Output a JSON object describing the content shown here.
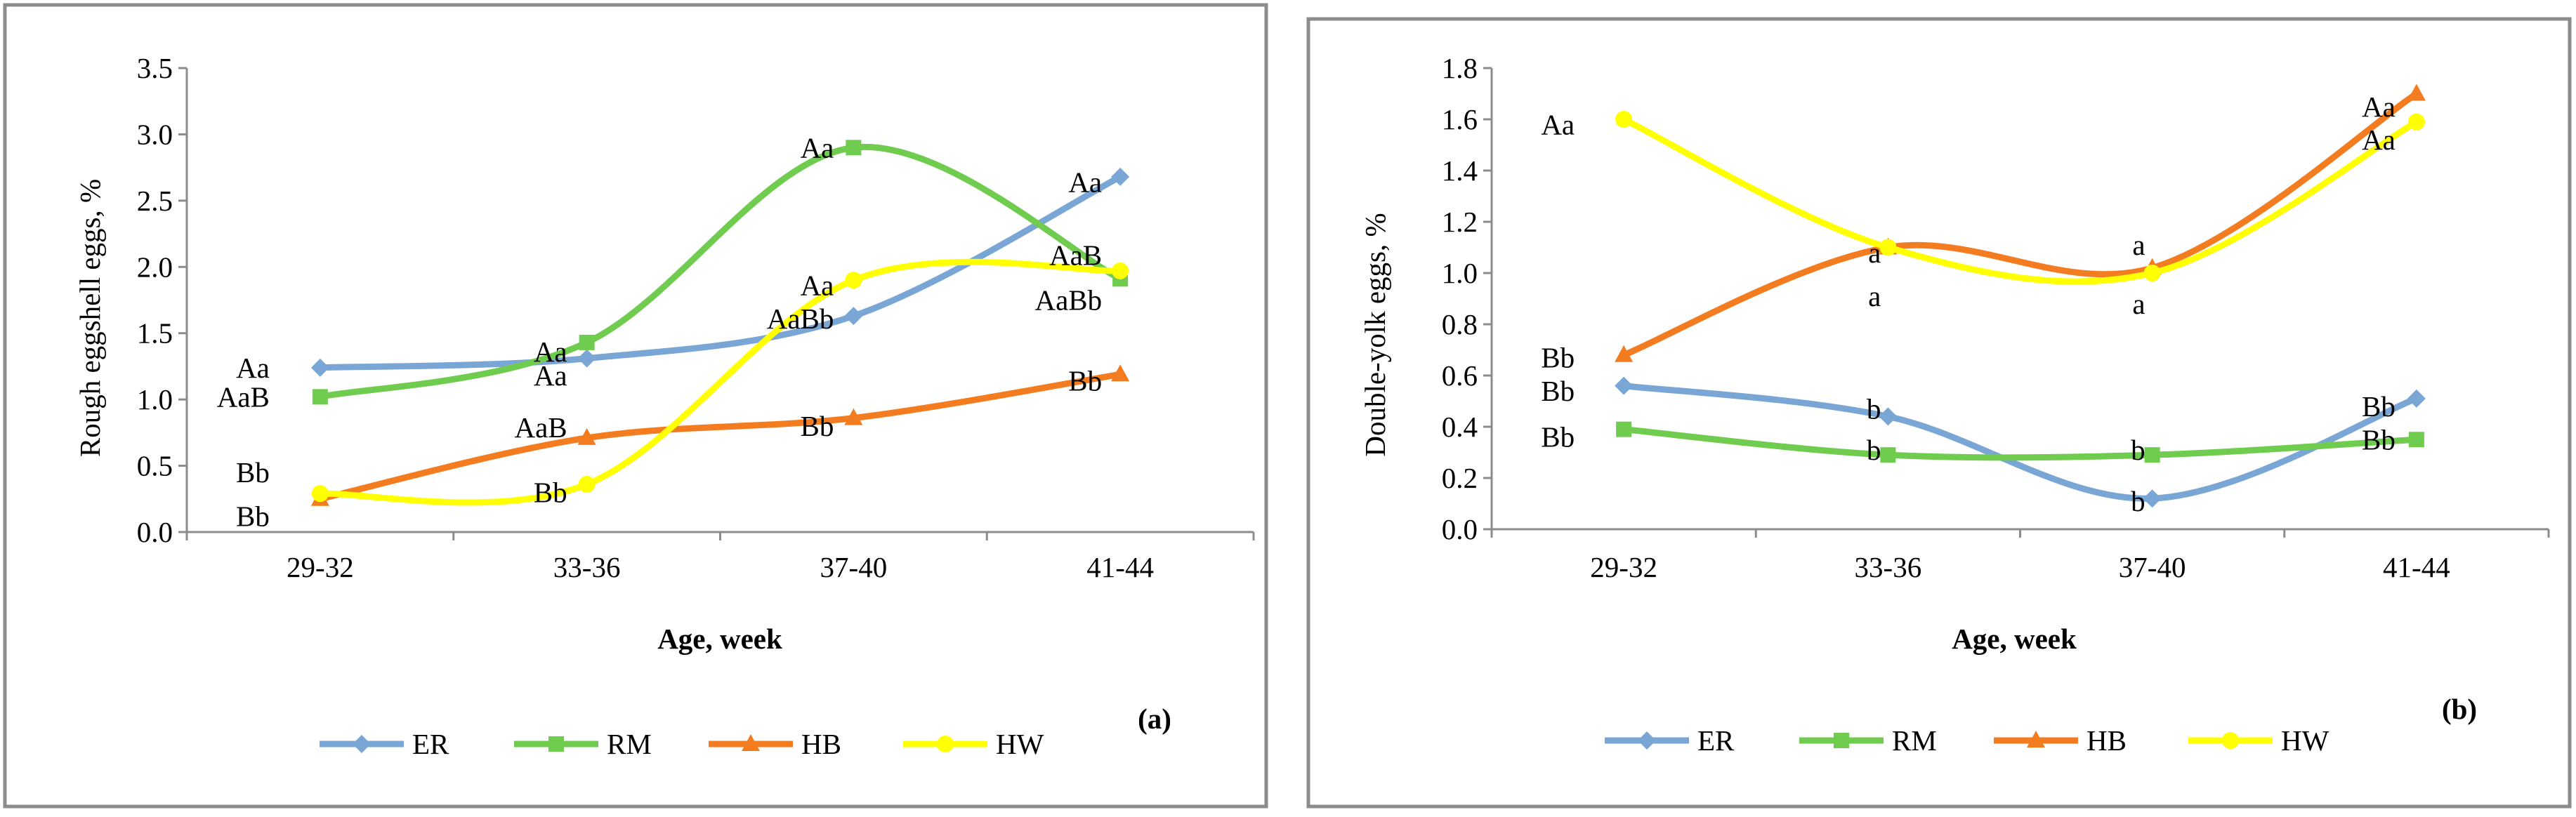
{
  "chart_data": [
    {
      "type": "line",
      "panel_label": "(a)",
      "ylabel": "Rough eggshell  eggs, %",
      "xlabel": "Age, week",
      "ylim": [
        0,
        3.5
      ],
      "yticks": [
        "0.0",
        "0.5",
        "1.0",
        "1.5",
        "2.0",
        "2.5",
        "3.0",
        "3.5"
      ],
      "ytick_values": [
        0,
        0.5,
        1.0,
        1.5,
        2.0,
        2.5,
        3.0,
        3.5
      ],
      "categories": [
        "29-32",
        "33-36",
        "37-40",
        "41-44"
      ],
      "series": [
        {
          "name": "ER",
          "color": "#7aa6d6",
          "marker": "diamond",
          "values": [
            1.24,
            1.31,
            1.63,
            2.68
          ]
        },
        {
          "name": "RM",
          "color": "#70cc4e",
          "marker": "square",
          "values": [
            1.02,
            1.43,
            2.9,
            1.91
          ]
        },
        {
          "name": "HB",
          "color": "#f47c20",
          "marker": "triangle",
          "values": [
            0.25,
            0.71,
            0.86,
            1.19
          ]
        },
        {
          "name": "HW",
          "color": "#ffff00",
          "marker": "circle",
          "values": [
            0.29,
            0.36,
            1.9,
            1.97
          ]
        }
      ],
      "annotations": [
        {
          "text": "Aa",
          "x": 0,
          "y": 1.24
        },
        {
          "text": "AaB",
          "x": 0,
          "y": 1.02
        },
        {
          "text": "Bb",
          "x": 0,
          "y": 0.45
        },
        {
          "text": "Bb",
          "x": 0,
          "y": 0.12
        },
        {
          "text": "Aa",
          "x": 1,
          "y": 1.36
        },
        {
          "text": "Aa",
          "x": 1,
          "y": 1.18
        },
        {
          "text": "AaB",
          "x": 1,
          "y": 0.79
        },
        {
          "text": "Bb",
          "x": 1,
          "y": 0.3
        },
        {
          "text": "Aa",
          "x": 2,
          "y": 2.9
        },
        {
          "text": "Aa",
          "x": 2,
          "y": 1.86
        },
        {
          "text": "AaBb",
          "x": 2,
          "y": 1.61
        },
        {
          "text": "Bb",
          "x": 2,
          "y": 0.8
        },
        {
          "text": "Aa",
          "x": 3,
          "y": 2.64
        },
        {
          "text": "AaB",
          "x": 3,
          "y": 2.09
        },
        {
          "text": "AaBb",
          "x": 3,
          "y": 1.75
        },
        {
          "text": "Bb",
          "x": 3,
          "y": 1.14
        }
      ]
    },
    {
      "type": "line",
      "panel_label": "(b)",
      "ylabel": "Double-yolk  eggs, %",
      "xlabel": "Age, week",
      "ylim": [
        0,
        1.8
      ],
      "yticks": [
        "0.0",
        "0.2",
        "0.4",
        "0.6",
        "0.8",
        "1.0",
        "1.2",
        "1.4",
        "1.6",
        "1.8"
      ],
      "ytick_values": [
        0,
        0.2,
        0.4,
        0.6,
        0.8,
        1.0,
        1.2,
        1.4,
        1.6,
        1.8
      ],
      "categories": [
        "29-32",
        "33-36",
        "37-40",
        "41-44"
      ],
      "series": [
        {
          "name": "ER",
          "color": "#7aa6d6",
          "marker": "diamond",
          "values": [
            0.56,
            0.44,
            0.12,
            0.51
          ]
        },
        {
          "name": "RM",
          "color": "#70cc4e",
          "marker": "square",
          "values": [
            0.39,
            0.29,
            0.29,
            0.35
          ]
        },
        {
          "name": "HB",
          "color": "#f47c20",
          "marker": "triangle",
          "values": [
            0.68,
            1.1,
            1.02,
            1.7
          ]
        },
        {
          "name": "HW",
          "color": "#ffff00",
          "marker": "circle",
          "values": [
            1.6,
            1.1,
            1.0,
            1.59
          ]
        }
      ],
      "annotations": [
        {
          "text": "Aa",
          "x": 0,
          "y": 1.58
        },
        {
          "text": "Bb",
          "x": 0,
          "y": 0.67
        },
        {
          "text": "Bb",
          "x": 0,
          "y": 0.54
        },
        {
          "text": "Bb",
          "x": 0,
          "y": 0.36
        },
        {
          "text": "a",
          "x": 1,
          "y": 1.08
        },
        {
          "text": "a",
          "x": 1,
          "y": 0.91
        },
        {
          "text": "b",
          "x": 1,
          "y": 0.47
        },
        {
          "text": "b",
          "x": 1,
          "y": 0.31
        },
        {
          "text": "a",
          "x": 2,
          "y": 1.11
        },
        {
          "text": "a",
          "x": 2,
          "y": 0.88
        },
        {
          "text": "b",
          "x": 2,
          "y": 0.31
        },
        {
          "text": "b",
          "x": 2,
          "y": 0.11
        },
        {
          "text": "Aa",
          "x": 3,
          "y": 1.65
        },
        {
          "text": "Aa",
          "x": 3,
          "y": 1.52
        },
        {
          "text": "Bb",
          "x": 3,
          "y": 0.48
        },
        {
          "text": "Bb",
          "x": 3,
          "y": 0.35
        }
      ]
    }
  ]
}
